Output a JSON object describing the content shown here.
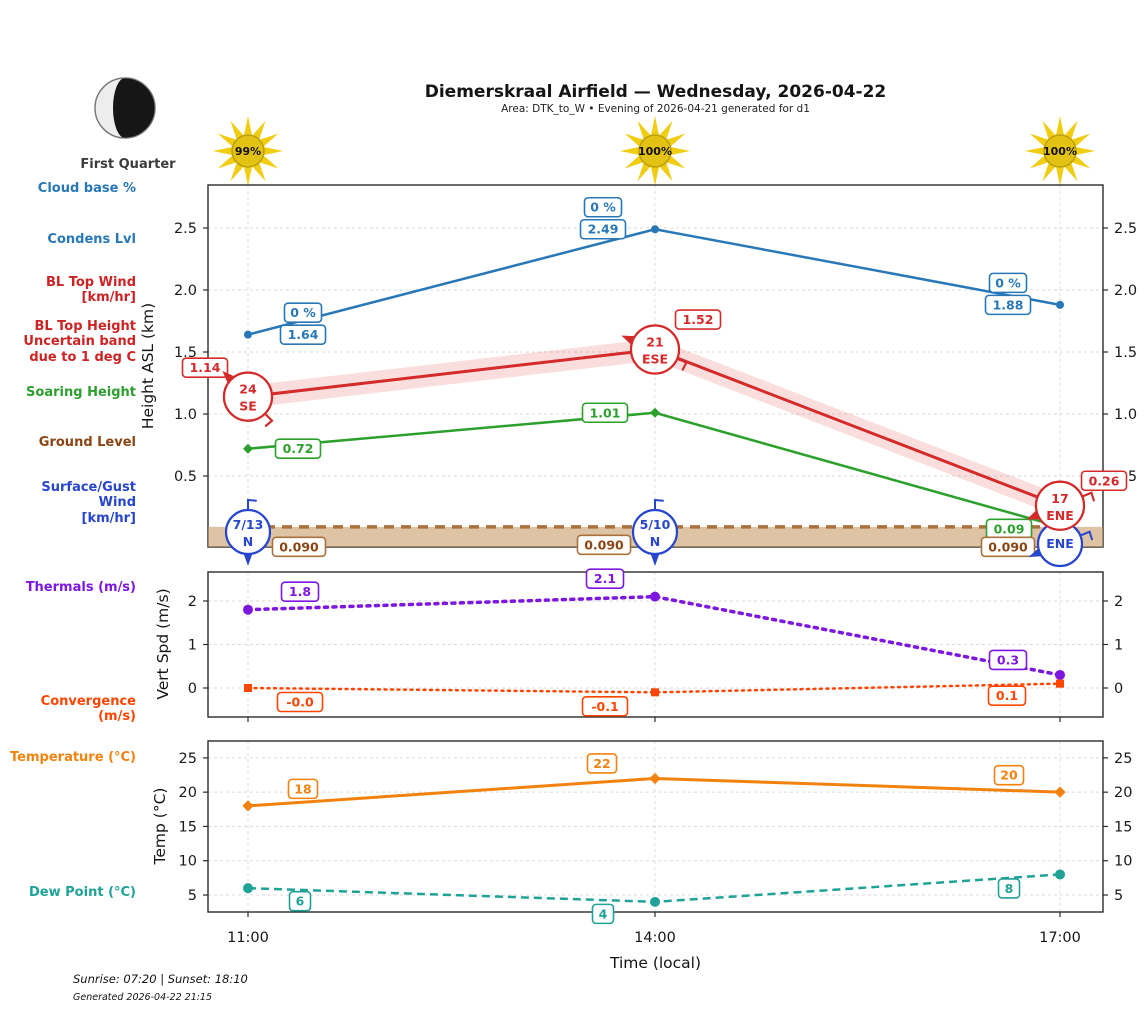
{
  "header": {
    "title": "Diemerskraal Airfield — Wednesday, 2026-04-22",
    "subtitle": "Area: DTK_to_W • Evening of 2026-04-21 generated for d1"
  },
  "moon": {
    "phase_label": "First Quarter"
  },
  "suns": [
    {
      "percent": "99%"
    },
    {
      "percent": "100%"
    },
    {
      "percent": "100%"
    }
  ],
  "left_labels": {
    "cloud_base": "Cloud base %",
    "condens": "Condens Lvl",
    "bl_top_wind": "BL Top Wind\n[km/hr]",
    "bl_top_height": "BL Top Height\nUncertain band\ndue to 1 deg C",
    "soaring": "Soaring Height",
    "ground": "Ground Level",
    "surface_wind": "Surface/Gust Wind\n[km/hr]",
    "thermals": "Thermals (m/s)",
    "convergence": "Convergence (m/s)",
    "temperature": "Temperature (°C)",
    "dew_point": "Dew Point (°C)"
  },
  "x_axis": {
    "ticks": [
      "11:00",
      "14:00",
      "17:00"
    ],
    "label": "Time (local)"
  },
  "footer": {
    "sun_times": "Sunrise: 07:20 | Sunset: 18:10",
    "generated": "Generated 2026-04-22 21:15"
  },
  "chart_data": [
    {
      "type": "line",
      "ylabel": "Height ASL (km)",
      "x": [
        "11:00",
        "14:00",
        "17:00"
      ],
      "ylim": [
        -0.07,
        2.85
      ],
      "yticks": [
        0.5,
        1.0,
        1.5,
        2.0,
        2.5
      ],
      "ytick_labels": [
        "0.5",
        "1.0",
        "1.5",
        "2.0",
        "2.5"
      ],
      "grid": true,
      "series": [
        {
          "name": "Condens Lvl",
          "color": "#2878b8",
          "values": [
            1.64,
            2.49,
            1.88
          ],
          "labels": [
            "1.64",
            "2.49",
            "1.88"
          ],
          "pct_labels": [
            "0 %",
            "0 %",
            "0 %"
          ]
        },
        {
          "name": "BL Top Height",
          "color": "#d42a2a",
          "band_color": "rgba(225,60,60,0.17)",
          "values": [
            1.14,
            1.52,
            0.26
          ],
          "labels": [
            "1.14",
            "1.52",
            "0.26"
          ],
          "wind": [
            {
              "speed": "24",
              "dir": "SE"
            },
            {
              "speed": "21",
              "dir": "ESE"
            },
            {
              "speed": "17",
              "dir": "ENE"
            }
          ]
        },
        {
          "name": "Soaring Height",
          "color": "#2ca02c",
          "values": [
            0.72,
            1.01,
            0.09
          ],
          "labels": [
            "0.72",
            "1.01",
            "0.09"
          ]
        },
        {
          "name": "Ground Level",
          "color": "#a9713d",
          "text_color": "#8b4513",
          "fill_color": "rgba(200,155,105,0.6)",
          "values": [
            0.09,
            0.09,
            0.09
          ],
          "labels": [
            "0.090",
            "0.090",
            "0.090"
          ]
        },
        {
          "name": "Surface/Gust Wind",
          "color": "#2746cc",
          "wind": [
            {
              "speed": "7/13",
              "dir": "N"
            },
            {
              "speed": "5/10",
              "dir": "N"
            },
            {
              "speed": "",
              "dir": "ENE"
            }
          ]
        }
      ]
    },
    {
      "type": "line",
      "ylabel": "Vert Spd (m/s)",
      "x": [
        "11:00",
        "14:00",
        "17:00"
      ],
      "ylim": [
        -0.65,
        2.65
      ],
      "yticks": [
        0,
        1,
        2
      ],
      "ytick_labels": [
        "0",
        "1",
        "2"
      ],
      "grid": true,
      "series": [
        {
          "name": "Thermals",
          "color": "#7d17e0",
          "values": [
            1.8,
            2.1,
            0.3
          ],
          "labels": [
            "1.8",
            "2.1",
            "0.3"
          ]
        },
        {
          "name": "Convergence",
          "color": "#ff4500",
          "values": [
            -0.0,
            -0.1,
            0.1
          ],
          "labels": [
            "-0.0",
            "-0.1",
            "0.1"
          ]
        }
      ]
    },
    {
      "type": "line",
      "ylabel": "Temp (°C)",
      "x": [
        "11:00",
        "14:00",
        "17:00"
      ],
      "ylim": [
        2.5,
        27.5
      ],
      "yticks": [
        5,
        10,
        15,
        20,
        25
      ],
      "ytick_labels": [
        "5",
        "10",
        "15",
        "20",
        "25"
      ],
      "grid": true,
      "series": [
        {
          "name": "Temperature",
          "color": "#f2820f",
          "values": [
            18,
            22,
            20
          ],
          "labels": [
            "18",
            "22",
            "20"
          ]
        },
        {
          "name": "Dew Point",
          "color": "#1fa396",
          "values": [
            6,
            4,
            8
          ],
          "labels": [
            "6",
            "4",
            "8"
          ]
        }
      ]
    }
  ]
}
